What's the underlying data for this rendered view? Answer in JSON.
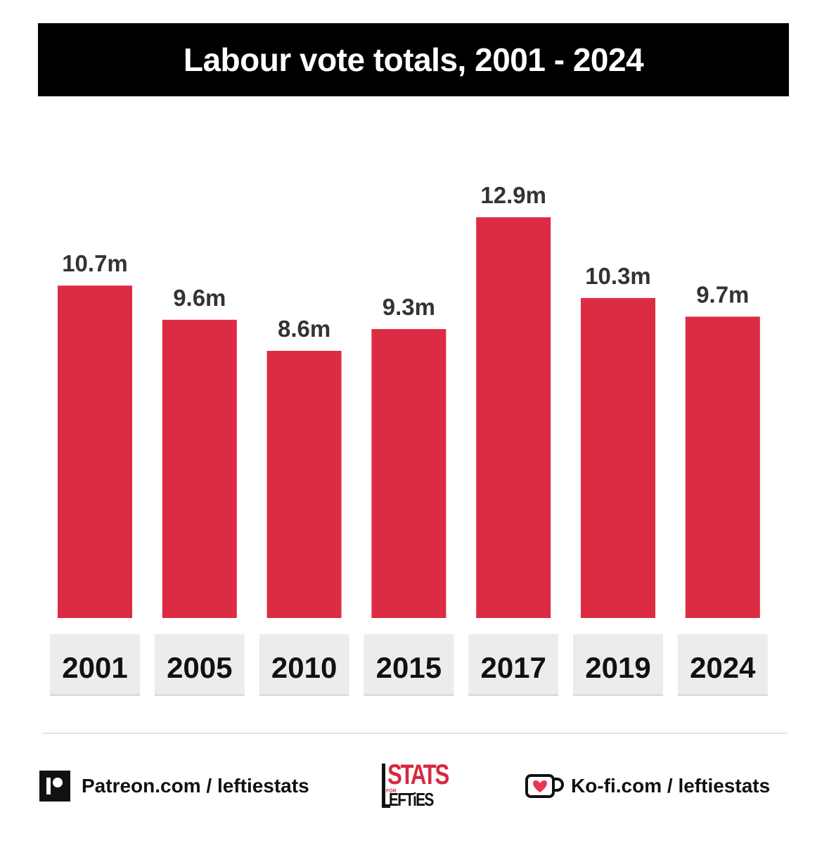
{
  "chart_data": {
    "type": "bar",
    "title": "Labour vote totals, 2001 - 2024",
    "categories": [
      "2001",
      "2005",
      "2010",
      "2015",
      "2017",
      "2019",
      "2024"
    ],
    "values": [
      10.7,
      9.6,
      8.6,
      9.3,
      12.9,
      10.3,
      9.7
    ],
    "data_labels": [
      "10.7m",
      "9.6m",
      "8.6m",
      "9.3m",
      "12.9m",
      "10.3m",
      "9.7m"
    ],
    "xlabel": "",
    "ylabel": "",
    "ylim": [
      0,
      12.9
    ],
    "grid": false,
    "legend": "none",
    "colors": {
      "bar": "#dc2c43",
      "category_box": "#ececec",
      "title_bg": "#000000",
      "title_text": "#ffffff",
      "label_text": "#333333",
      "category_text": "#111111"
    }
  },
  "footer": {
    "patreon_text": "Patreon.com / leftiestats",
    "patreon_icon": "patreon-icon",
    "kofi_text": "Ko-fi.com / leftiestats",
    "kofi_icon": "ko-fi-cup-icon",
    "logo_top": "STATS",
    "logo_small": "FOR",
    "logo_bottom": "EFTiES"
  }
}
